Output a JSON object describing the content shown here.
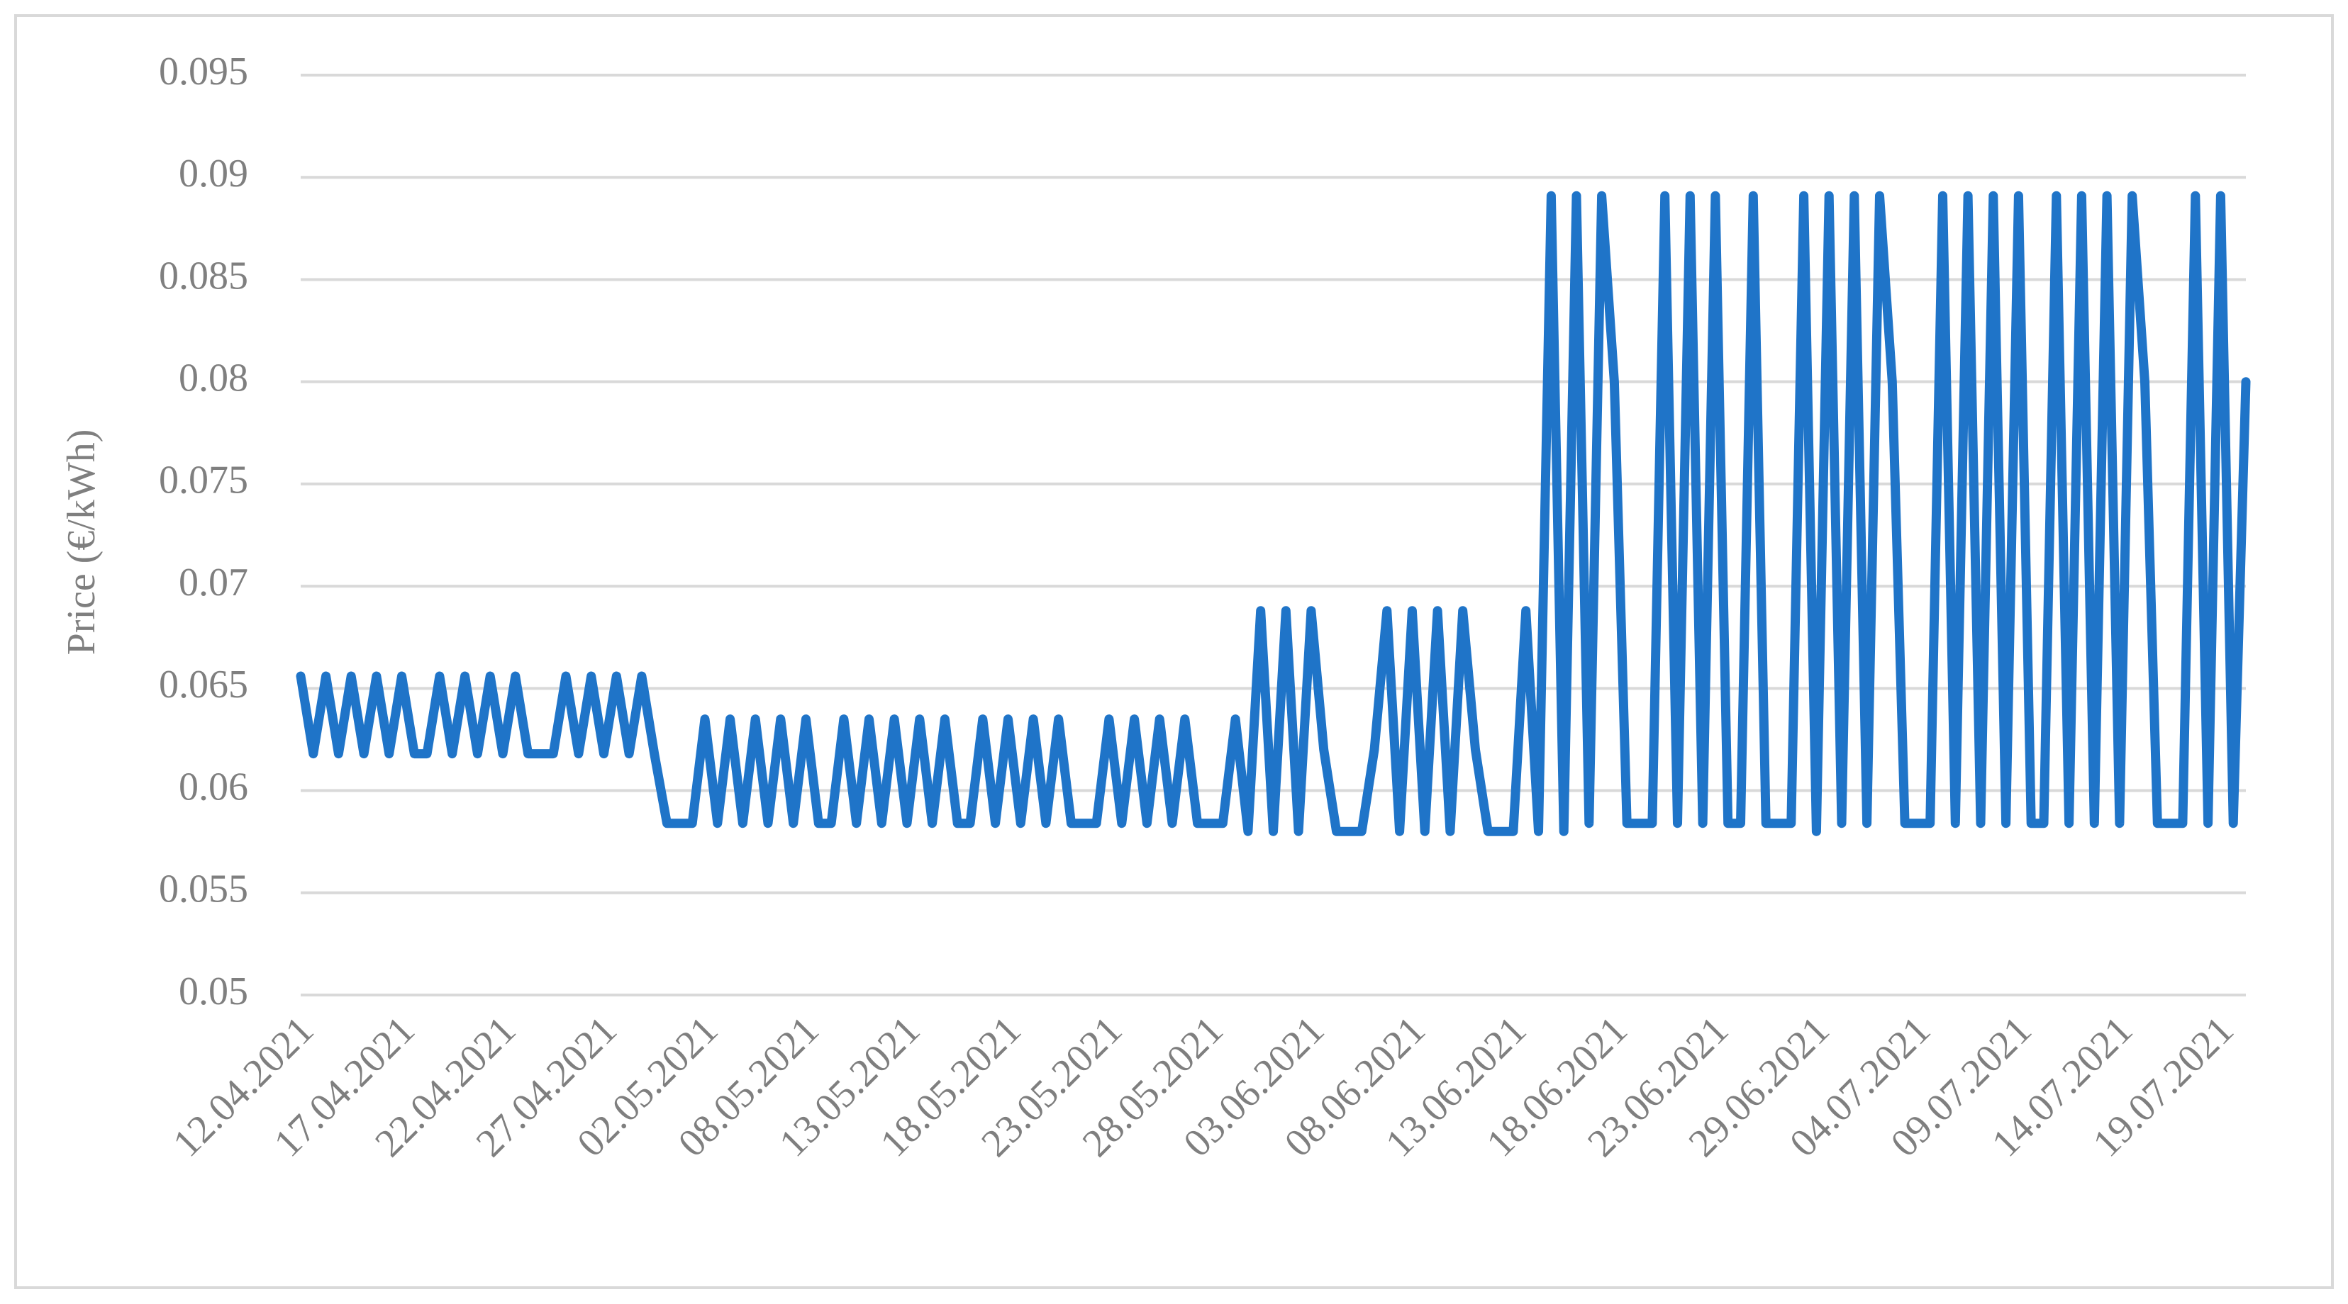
{
  "chart_data": {
    "type": "line",
    "y_label": "Price (€/kWh)",
    "categories": [
      "12.04.2021",
      null,
      null,
      null,
      null,
      null,
      null,
      null,
      "17.04.2021",
      null,
      null,
      null,
      null,
      null,
      null,
      null,
      "22.04.2021",
      null,
      null,
      null,
      null,
      null,
      null,
      null,
      "27.04.2021",
      null,
      null,
      null,
      null,
      null,
      null,
      null,
      "02.05.2021",
      null,
      null,
      null,
      null,
      null,
      null,
      null,
      "08.05.2021",
      null,
      null,
      null,
      null,
      null,
      null,
      null,
      "13.05.2021",
      null,
      null,
      null,
      null,
      null,
      null,
      null,
      "18.05.2021",
      null,
      null,
      null,
      null,
      null,
      null,
      null,
      "23.05.2021",
      null,
      null,
      null,
      null,
      null,
      null,
      null,
      "28.05.2021",
      null,
      null,
      null,
      null,
      null,
      null,
      null,
      "03.06.2021",
      null,
      null,
      null,
      null,
      null,
      null,
      null,
      "08.06.2021",
      null,
      null,
      null,
      null,
      null,
      null,
      null,
      "13.06.2021",
      null,
      null,
      null,
      null,
      null,
      null,
      null,
      "18.06.2021",
      null,
      null,
      null,
      null,
      null,
      null,
      null,
      "23.06.2021",
      null,
      null,
      null,
      null,
      null,
      null,
      null,
      "29.06.2021",
      null,
      null,
      null,
      null,
      null,
      null,
      null,
      "04.07.2021",
      null,
      null,
      null,
      null,
      null,
      null,
      null,
      "09.07.2021",
      null,
      null,
      null,
      null,
      null,
      null,
      null,
      "14.07.2021",
      null,
      null,
      null,
      null,
      null,
      null,
      null,
      "19.07.2021",
      null,
      null
    ],
    "values": [
      0.0656,
      0.0618,
      0.0656,
      0.0618,
      0.0656,
      0.0618,
      0.0656,
      0.0618,
      0.0656,
      0.0618,
      0.0618,
      0.0656,
      0.0618,
      0.0656,
      0.0618,
      0.0656,
      0.0618,
      0.0656,
      0.0618,
      0.0618,
      0.0618,
      0.0656,
      0.0618,
      0.0656,
      0.0618,
      0.0656,
      0.0618,
      0.0656,
      0.0618,
      0.0584,
      0.0584,
      0.0584,
      0.0635,
      0.0584,
      0.0635,
      0.0584,
      0.0635,
      0.0584,
      0.0635,
      0.0584,
      0.0635,
      0.0584,
      0.0584,
      0.0635,
      0.0584,
      0.0635,
      0.0584,
      0.0635,
      0.0584,
      0.0635,
      0.0584,
      0.0635,
      0.0584,
      0.0584,
      0.0635,
      0.0584,
      0.0635,
      0.0584,
      0.0635,
      0.0584,
      0.0635,
      0.0584,
      0.0584,
      0.0584,
      0.0635,
      0.0584,
      0.0635,
      0.0584,
      0.0635,
      0.0584,
      0.0635,
      0.0584,
      0.0584,
      0.0584,
      0.0635,
      0.058,
      0.0688,
      0.058,
      0.0688,
      0.058,
      0.0688,
      0.062,
      0.058,
      0.058,
      0.058,
      0.062,
      0.0688,
      0.058,
      0.0688,
      0.058,
      0.0688,
      0.058,
      0.0688,
      0.062,
      0.058,
      0.058,
      0.058,
      0.0688,
      0.058,
      0.0891,
      0.058,
      0.0891,
      0.0584,
      0.0891,
      0.08,
      0.0584,
      0.0584,
      0.0584,
      0.0891,
      0.0584,
      0.0891,
      0.0584,
      0.0891,
      0.0584,
      0.0584,
      0.0891,
      0.0584,
      0.0584,
      0.0584,
      0.0891,
      0.058,
      0.0891,
      0.0584,
      0.0891,
      0.0584,
      0.0891,
      0.08,
      0.0584,
      0.0584,
      0.0584,
      0.0891,
      0.0584,
      0.0891,
      0.0584,
      0.0891,
      0.0584,
      0.0891,
      0.0584,
      0.0584,
      0.0891,
      0.0584,
      0.0891,
      0.0584,
      0.0891,
      0.0584,
      0.0891,
      0.08,
      0.0584,
      0.0584,
      0.0584,
      0.0891,
      0.0584,
      0.0891,
      0.0584,
      0.08
    ],
    "color": "#1f74c8",
    "ylim": [
      0.05,
      0.095
    ],
    "yticks": [
      0.05,
      0.055,
      0.06,
      0.065,
      0.07,
      0.075,
      0.08,
      0.085,
      0.09,
      0.095
    ],
    "grid": true
  }
}
